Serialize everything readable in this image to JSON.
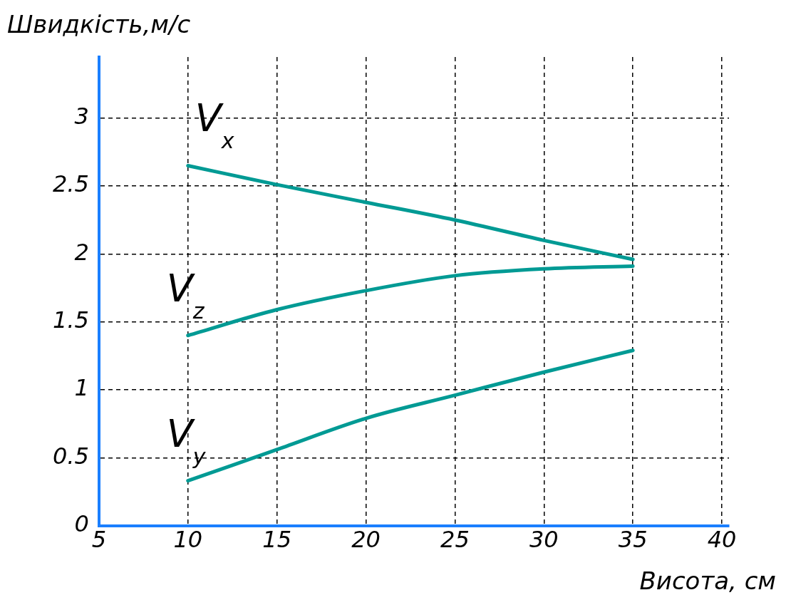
{
  "chart_data": {
    "type": "line",
    "xlabel": "Висота, см",
    "ylabel": "Швидкість,м/с",
    "x": [
      10,
      15,
      20,
      25,
      30,
      35
    ],
    "series": [
      {
        "name": "V$_{x}$",
        "color": "#009a94",
        "values": [
          2.65,
          2.51,
          2.38,
          2.25,
          2.1,
          1.96
        ]
      },
      {
        "name": "V$_{z}$",
        "color": "#009a94",
        "values": [
          1.4,
          1.59,
          1.73,
          1.84,
          1.89,
          1.91
        ]
      },
      {
        "name": "V$_{y}$",
        "color": "#009a94",
        "values": [
          0.33,
          0.56,
          0.79,
          0.96,
          1.13,
          1.29
        ]
      }
    ],
    "xlim": [
      5,
      40.4
    ],
    "xticks": [
      5,
      10,
      15,
      20,
      25,
      30,
      35,
      40
    ],
    "ylim": [
      0,
      3.45
    ],
    "yticks": [
      0,
      0.5,
      1,
      1.5,
      2,
      2.5,
      3
    ],
    "grid": true,
    "legend": false,
    "marker": "none",
    "line_style": "solid"
  }
}
